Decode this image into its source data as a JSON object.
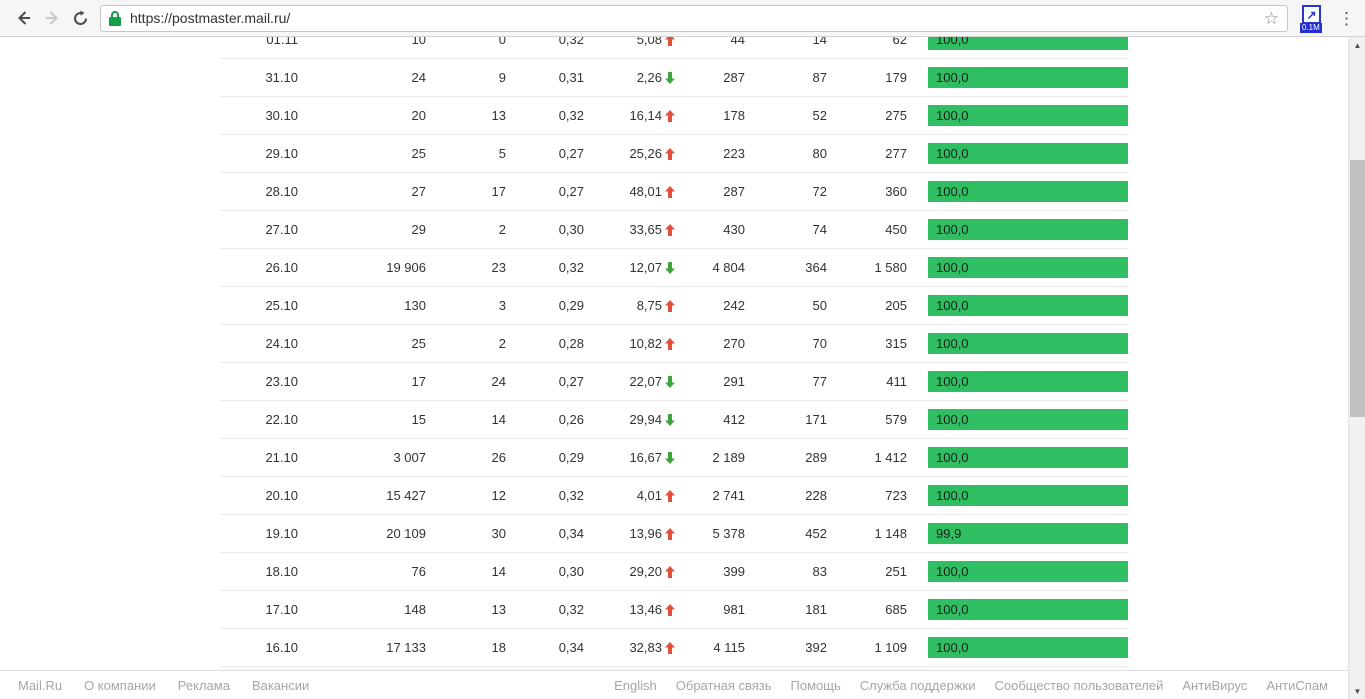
{
  "browser": {
    "url": "https://postmaster.mail.ru/",
    "extension_badge": "0.1M",
    "colors": {
      "lock_green": "#179c49",
      "extension_blue": "#2a35c9"
    }
  },
  "table": {
    "colors": {
      "bar_green": "#2fbe62",
      "trend_up_red": "#e2503a",
      "trend_down_green": "#3fa43a"
    },
    "rows": [
      {
        "date": "01.11",
        "c2": "10",
        "c3": "0",
        "c4": "0,32",
        "c5": "5,08",
        "trend": "up",
        "c6": "44",
        "c7": "14",
        "c8": "62",
        "bar_label": "100,0",
        "bar_pct": 100
      },
      {
        "date": "31.10",
        "c2": "24",
        "c3": "9",
        "c4": "0,31",
        "c5": "2,26",
        "trend": "down",
        "c6": "287",
        "c7": "87",
        "c8": "179",
        "bar_label": "100,0",
        "bar_pct": 100
      },
      {
        "date": "30.10",
        "c2": "20",
        "c3": "13",
        "c4": "0,32",
        "c5": "16,14",
        "trend": "up",
        "c6": "178",
        "c7": "52",
        "c8": "275",
        "bar_label": "100,0",
        "bar_pct": 100
      },
      {
        "date": "29.10",
        "c2": "25",
        "c3": "5",
        "c4": "0,27",
        "c5": "25,26",
        "trend": "up",
        "c6": "223",
        "c7": "80",
        "c8": "277",
        "bar_label": "100,0",
        "bar_pct": 100
      },
      {
        "date": "28.10",
        "c2": "27",
        "c3": "17",
        "c4": "0,27",
        "c5": "48,01",
        "trend": "up",
        "c6": "287",
        "c7": "72",
        "c8": "360",
        "bar_label": "100,0",
        "bar_pct": 100
      },
      {
        "date": "27.10",
        "c2": "29",
        "c3": "2",
        "c4": "0,30",
        "c5": "33,65",
        "trend": "up",
        "c6": "430",
        "c7": "74",
        "c8": "450",
        "bar_label": "100,0",
        "bar_pct": 100
      },
      {
        "date": "26.10",
        "c2": "19 906",
        "c3": "23",
        "c4": "0,32",
        "c5": "12,07",
        "trend": "down",
        "c6": "4 804",
        "c7": "364",
        "c8": "1 580",
        "bar_label": "100,0",
        "bar_pct": 100
      },
      {
        "date": "25.10",
        "c2": "130",
        "c3": "3",
        "c4": "0,29",
        "c5": "8,75",
        "trend": "up",
        "c6": "242",
        "c7": "50",
        "c8": "205",
        "bar_label": "100,0",
        "bar_pct": 100
      },
      {
        "date": "24.10",
        "c2": "25",
        "c3": "2",
        "c4": "0,28",
        "c5": "10,82",
        "trend": "up",
        "c6": "270",
        "c7": "70",
        "c8": "315",
        "bar_label": "100,0",
        "bar_pct": 100
      },
      {
        "date": "23.10",
        "c2": "17",
        "c3": "24",
        "c4": "0,27",
        "c5": "22,07",
        "trend": "down",
        "c6": "291",
        "c7": "77",
        "c8": "411",
        "bar_label": "100,0",
        "bar_pct": 100
      },
      {
        "date": "22.10",
        "c2": "15",
        "c3": "14",
        "c4": "0,26",
        "c5": "29,94",
        "trend": "down",
        "c6": "412",
        "c7": "171",
        "c8": "579",
        "bar_label": "100,0",
        "bar_pct": 100
      },
      {
        "date": "21.10",
        "c2": "3 007",
        "c3": "26",
        "c4": "0,29",
        "c5": "16,67",
        "trend": "down",
        "c6": "2 189",
        "c7": "289",
        "c8": "1 412",
        "bar_label": "100,0",
        "bar_pct": 100
      },
      {
        "date": "20.10",
        "c2": "15 427",
        "c3": "12",
        "c4": "0,32",
        "c5": "4,01",
        "trend": "up",
        "c6": "2 741",
        "c7": "228",
        "c8": "723",
        "bar_label": "100,0",
        "bar_pct": 100
      },
      {
        "date": "19.10",
        "c2": "20 109",
        "c3": "30",
        "c4": "0,34",
        "c5": "13,96",
        "trend": "up",
        "c6": "5 378",
        "c7": "452",
        "c8": "1 148",
        "bar_label": "99,9",
        "bar_pct": 99.9
      },
      {
        "date": "18.10",
        "c2": "76",
        "c3": "14",
        "c4": "0,30",
        "c5": "29,20",
        "trend": "up",
        "c6": "399",
        "c7": "83",
        "c8": "251",
        "bar_label": "100,0",
        "bar_pct": 100
      },
      {
        "date": "17.10",
        "c2": "148",
        "c3": "13",
        "c4": "0,32",
        "c5": "13,46",
        "trend": "up",
        "c6": "981",
        "c7": "181",
        "c8": "685",
        "bar_label": "100,0",
        "bar_pct": 100
      },
      {
        "date": "16.10",
        "c2": "17 133",
        "c3": "18",
        "c4": "0,34",
        "c5": "32,83",
        "trend": "up",
        "c6": "4 115",
        "c7": "392",
        "c8": "1 109",
        "bar_label": "100,0",
        "bar_pct": 100
      }
    ]
  },
  "footer": {
    "left_links": [
      "Mail.Ru",
      "О компании",
      "Реклама",
      "Вакансии"
    ],
    "right_links": [
      "English",
      "Обратная связь",
      "Помощь",
      "Служба поддержки",
      "Сообщество пользователей",
      "АнтиВирус",
      "АнтиСпам"
    ]
  }
}
